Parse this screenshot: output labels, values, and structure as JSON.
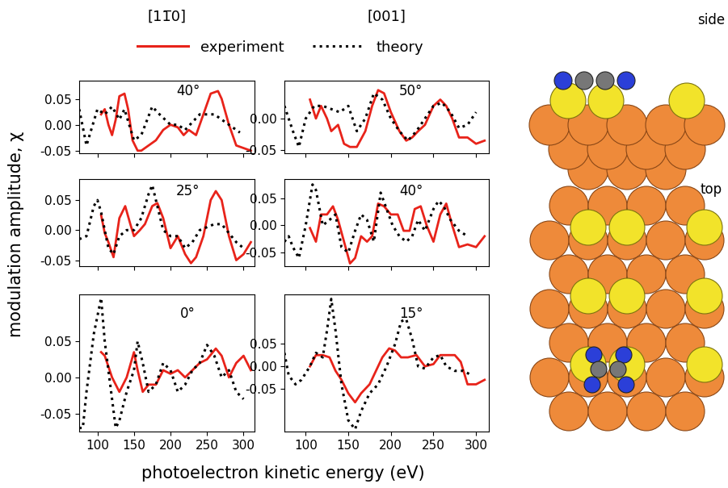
{
  "column_titles": [
    "[11̅0]",
    "[001]"
  ],
  "xlabel": "photoelectron kinetic energy (eV)",
  "ylabel": "modulation amplitude, χ",
  "diagram": {
    "side_label": "side",
    "top_label": "top"
  },
  "chart_data": [
    {
      "type": "line",
      "title": "40°",
      "legend": "upper center",
      "tick_labels": "y",
      "xlim": [
        75,
        315
      ],
      "xticks": [
        100,
        150,
        200,
        250,
        300
      ],
      "ylim": [
        -0.055,
        0.085
      ],
      "yticks": [
        -0.05,
        {
          "value": 0.0,
          "label": "0.00"
        },
        0.05
      ],
      "series": [
        {
          "name": "experiment",
          "color": "#e8231a",
          "line_style": "solid",
          "x": [
            105,
            110,
            115,
            120,
            125,
            130,
            137,
            142,
            148,
            155,
            160,
            170,
            180,
            190,
            200,
            210,
            218,
            225,
            235,
            245,
            255,
            265,
            270,
            280,
            290,
            300,
            310
          ],
          "values": [
            0.02,
            0.03,
            0.0,
            -0.02,
            0.01,
            0.055,
            0.06,
            0.03,
            -0.03,
            -0.05,
            -0.05,
            -0.04,
            -0.03,
            -0.01,
            0.0,
            -0.005,
            -0.02,
            -0.01,
            -0.02,
            0.02,
            0.06,
            0.065,
            0.05,
            0.0,
            -0.04,
            -0.045,
            -0.05
          ]
        },
        {
          "name": "theory",
          "color": "#000000",
          "line_style": "dotted",
          "x": [
            75,
            85,
            100,
            110,
            120,
            130,
            137,
            150,
            160,
            175,
            185,
            200,
            210,
            220,
            240,
            260,
            280,
            295
          ],
          "values": [
            0.03,
            -0.04,
            0.03,
            0.02,
            0.035,
            0.01,
            0.03,
            -0.03,
            -0.02,
            0.035,
            0.02,
            0.0,
            0.0,
            -0.01,
            0.02,
            0.02,
            0.0,
            -0.015
          ]
        }
      ]
    },
    {
      "type": "line",
      "title": "25°",
      "tick_labels": "y",
      "xlim": [
        75,
        315
      ],
      "xticks": [
        100,
        150,
        200,
        250,
        300
      ],
      "ylim": [
        -0.06,
        0.085
      ],
      "yticks": [
        -0.05,
        {
          "value": 0.0,
          "label": "0.00"
        },
        0.05
      ],
      "series": [
        {
          "name": "experiment",
          "color": "#e8231a",
          "line_style": "solid",
          "x": [
            105,
            110,
            115,
            122,
            130,
            138,
            145,
            150,
            158,
            165,
            175,
            182,
            190,
            200,
            210,
            220,
            228,
            235,
            245,
            255,
            262,
            270,
            280,
            290,
            300,
            310
          ],
          "values": [
            0.025,
            -0.005,
            -0.02,
            -0.045,
            0.02,
            0.04,
            0.01,
            -0.01,
            0.0,
            0.01,
            0.04,
            0.045,
            0.02,
            -0.03,
            -0.01,
            -0.04,
            -0.055,
            -0.045,
            -0.01,
            0.05,
            0.065,
            0.05,
            -0.01,
            -0.05,
            -0.04,
            -0.02
          ]
        },
        {
          "name": "theory",
          "color": "#000000",
          "line_style": "dotted",
          "x": [
            75,
            85,
            95,
            100,
            105,
            115,
            122,
            130,
            140,
            150,
            160,
            170,
            175,
            182,
            190,
            200,
            210,
            220,
            230,
            240,
            250,
            260,
            270,
            280,
            290,
            300
          ],
          "values": [
            -0.015,
            -0.01,
            0.04,
            0.05,
            0.03,
            -0.03,
            -0.04,
            -0.01,
            0.0,
            0.0,
            0.02,
            0.06,
            0.075,
            0.04,
            0.0,
            -0.01,
            -0.01,
            -0.03,
            -0.02,
            0.0,
            0.005,
            0.01,
            0.01,
            -0.005,
            -0.02,
            -0.03
          ]
        }
      ]
    },
    {
      "type": "line",
      "title": "0°",
      "tick_labels": true,
      "xlim": [
        75,
        315
      ],
      "xticks": [
        100,
        150,
        200,
        250,
        300
      ],
      "ylim": [
        -0.075,
        0.115
      ],
      "yticks": [
        -0.05,
        {
          "value": 0.0,
          "label": "0.00"
        },
        0.05
      ],
      "series": [
        {
          "name": "experiment",
          "color": "#e8231a",
          "line_style": "solid",
          "x": [
            105,
            110,
            120,
            130,
            140,
            150,
            155,
            162,
            170,
            180,
            190,
            200,
            210,
            220,
            230,
            240,
            250,
            262,
            270,
            280,
            290,
            300,
            310
          ],
          "values": [
            0.035,
            0.03,
            0.0,
            -0.02,
            0.0,
            0.035,
            0.01,
            -0.02,
            -0.01,
            -0.01,
            0.01,
            0.005,
            0.01,
            0.0,
            0.01,
            0.02,
            0.025,
            0.04,
            0.03,
            0.0,
            0.02,
            0.03,
            0.01
          ]
        },
        {
          "name": "theory",
          "color": "#000000",
          "line_style": "dotted",
          "x": [
            75,
            80,
            85,
            95,
            105,
            110,
            120,
            125,
            130,
            140,
            150,
            155,
            162,
            170,
            180,
            190,
            200,
            210,
            220,
            230,
            240,
            250,
            260,
            270,
            280,
            290,
            300
          ],
          "values": [
            -0.07,
            -0.07,
            -0.02,
            0.06,
            0.11,
            0.05,
            -0.03,
            -0.07,
            -0.06,
            -0.02,
            0.01,
            0.05,
            0.02,
            -0.02,
            -0.01,
            0.02,
            0.01,
            -0.02,
            -0.01,
            0.01,
            0.02,
            0.045,
            0.03,
            0.0,
            0.01,
            -0.02,
            -0.03
          ]
        }
      ]
    },
    {
      "type": "line",
      "title": "50°",
      "tick_labels": "y",
      "xlim": [
        75,
        315
      ],
      "xticks": [
        100,
        150,
        200,
        250,
        300
      ],
      "ylim": [
        -0.055,
        0.06
      ],
      "yticks": [
        -0.05,
        {
          "value": 0.0,
          "label": "0.00"
        }
      ],
      "series": [
        {
          "name": "experiment",
          "color": "#e8231a",
          "line_style": "solid",
          "x": [
            105,
            112,
            118,
            125,
            130,
            138,
            145,
            152,
            160,
            170,
            178,
            185,
            192,
            200,
            210,
            218,
            225,
            232,
            240,
            250,
            258,
            265,
            272,
            280,
            290,
            300,
            310
          ],
          "values": [
            0.03,
            0.0,
            0.02,
            0.0,
            -0.02,
            -0.01,
            -0.04,
            -0.045,
            -0.045,
            -0.02,
            0.02,
            0.045,
            0.04,
            0.01,
            -0.02,
            -0.035,
            -0.03,
            -0.02,
            -0.01,
            0.02,
            0.03,
            0.02,
            0.0,
            -0.03,
            -0.03,
            -0.04,
            -0.035
          ]
        },
        {
          "name": "theory",
          "color": "#000000",
          "line_style": "dotted",
          "x": [
            75,
            85,
            92,
            100,
            110,
            120,
            130,
            140,
            150,
            160,
            170,
            180,
            190,
            200,
            210,
            220,
            230,
            240,
            250,
            260,
            270,
            280,
            290,
            300
          ],
          "values": [
            0.02,
            -0.02,
            -0.045,
            0.0,
            0.02,
            0.02,
            0.015,
            0.01,
            0.02,
            -0.02,
            0.0,
            0.04,
            0.03,
            0.0,
            -0.02,
            -0.035,
            -0.02,
            0.0,
            0.02,
            0.025,
            0.01,
            -0.015,
            -0.01,
            0.01
          ]
        }
      ]
    },
    {
      "type": "line",
      "title": "40°",
      "tick_labels": "y",
      "xlim": [
        75,
        315
      ],
      "xticks": [
        100,
        150,
        200,
        250,
        300
      ],
      "ylim": [
        -0.075,
        0.085
      ],
      "yticks": [
        -0.05,
        {
          "value": 0.0,
          "label": "0.00"
        },
        0.05
      ],
      "series": [
        {
          "name": "experiment",
          "color": "#e8231a",
          "line_style": "solid",
          "x": [
            105,
            112,
            118,
            125,
            132,
            138,
            145,
            152,
            158,
            165,
            172,
            178,
            185,
            192,
            200,
            208,
            215,
            222,
            228,
            235,
            242,
            250,
            258,
            265,
            272,
            280,
            290,
            300,
            310
          ],
          "values": [
            -0.005,
            -0.03,
            0.02,
            0.02,
            0.035,
            0.01,
            -0.03,
            -0.07,
            -0.06,
            -0.02,
            -0.03,
            -0.02,
            0.04,
            0.035,
            0.02,
            0.02,
            -0.01,
            -0.01,
            0.03,
            0.035,
            0.0,
            -0.03,
            0.02,
            0.04,
            0.0,
            -0.04,
            -0.035,
            -0.04,
            -0.02
          ]
        },
        {
          "name": "theory",
          "color": "#000000",
          "line_style": "dotted",
          "x": [
            75,
            80,
            85,
            92,
            100,
            108,
            112,
            120,
            128,
            135,
            142,
            150,
            158,
            165,
            172,
            180,
            188,
            195,
            202,
            210,
            218,
            225,
            232,
            240,
            250,
            256,
            262,
            270,
            280,
            290
          ],
          "values": [
            -0.03,
            -0.02,
            -0.04,
            -0.06,
            0.0,
            0.075,
            0.065,
            0.0,
            0.01,
            0.02,
            -0.04,
            -0.05,
            -0.01,
            0.02,
            0.01,
            -0.03,
            0.06,
            0.03,
            0.0,
            -0.02,
            -0.03,
            -0.02,
            0.01,
            -0.01,
            0.03,
            0.045,
            0.035,
            0.01,
            -0.01,
            -0.02
          ]
        }
      ]
    },
    {
      "type": "line",
      "title": "15°",
      "tick_labels": true,
      "xlim": [
        75,
        315
      ],
      "xticks": [
        100,
        150,
        200,
        250,
        300
      ],
      "ylim": [
        -0.145,
        0.16
      ],
      "yticks": [
        -0.05,
        {
          "value": 0.0,
          "label": "0.00"
        },
        0.05
      ],
      "series": [
        {
          "name": "experiment",
          "color": "#e8231a",
          "line_style": "solid",
          "x": [
            105,
            112,
            120,
            128,
            135,
            142,
            150,
            158,
            165,
            175,
            185,
            190,
            198,
            205,
            212,
            220,
            230,
            240,
            250,
            258,
            265,
            275,
            282,
            290,
            300,
            310
          ],
          "values": [
            0.0,
            0.025,
            0.025,
            0.02,
            -0.01,
            -0.03,
            -0.06,
            -0.08,
            -0.06,
            -0.04,
            0.0,
            0.02,
            0.04,
            0.035,
            0.02,
            0.02,
            0.025,
            0.0,
            0.005,
            0.025,
            0.025,
            0.025,
            0.01,
            -0.04,
            -0.04,
            -0.03
          ]
        },
        {
          "name": "theory",
          "color": "#000000",
          "line_style": "dotted",
          "x": [
            75,
            80,
            88,
            95,
            105,
            112,
            120,
            125,
            130,
            135,
            142,
            150,
            158,
            165,
            175,
            185,
            195,
            205,
            212,
            218,
            225,
            232,
            240,
            250,
            258,
            265,
            275,
            285,
            295
          ],
          "values": [
            0.03,
            -0.02,
            -0.04,
            -0.03,
            0.0,
            0.03,
            0.02,
            0.08,
            0.15,
            0.08,
            -0.04,
            -0.12,
            -0.14,
            -0.1,
            -0.06,
            -0.04,
            0.0,
            0.05,
            0.1,
            0.105,
            0.06,
            0.0,
            -0.005,
            0.02,
            0.025,
            0.0,
            -0.01,
            -0.01,
            -0.02
          ]
        }
      ]
    }
  ]
}
